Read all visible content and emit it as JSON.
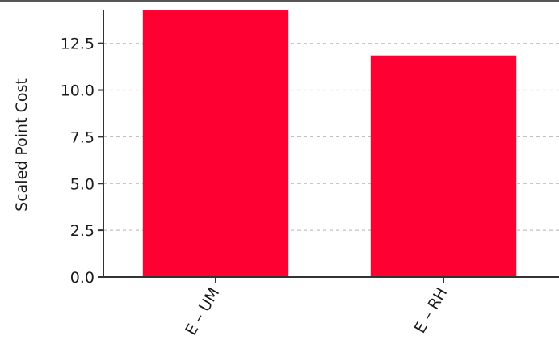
{
  "chart_data": {
    "type": "bar",
    "title": "",
    "xlabel": "",
    "ylabel": "Scaled Point Cost",
    "categories": [
      "E – UM",
      "E – RH"
    ],
    "values": [
      14.3,
      11.85
    ],
    "ylim": [
      0,
      14.3
    ],
    "yticks": [
      0.0,
      2.5,
      5.0,
      7.5,
      10.0,
      12.5
    ],
    "ytick_labels": [
      "0.0",
      "2.5",
      "5.0",
      "7.5",
      "10.0",
      "12.5"
    ],
    "grid": "horizontal dashed",
    "legend": "none",
    "bar_color": "#ff0033",
    "grid_color": "#c0c0c0",
    "axis_color": "#333333"
  }
}
